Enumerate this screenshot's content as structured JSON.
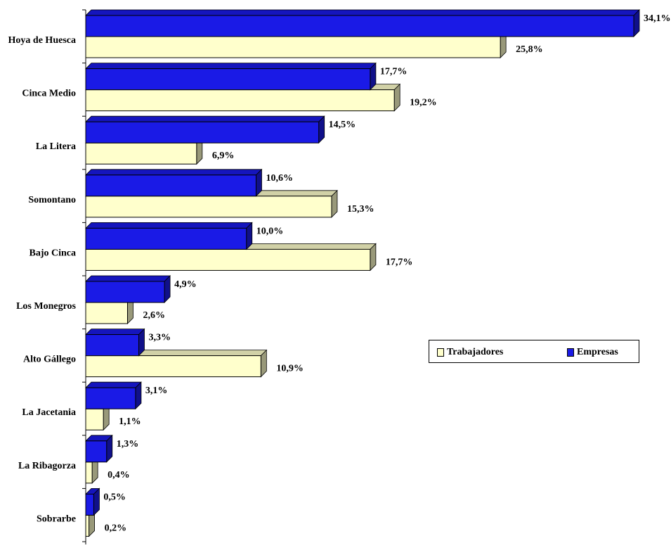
{
  "chart_data": {
    "type": "bar",
    "orientation": "horizontal",
    "style": "3d",
    "categories": [
      "Hoya de Huesca",
      "Cinca Medio",
      "La Litera",
      "Somontano",
      "Bajo Cinca",
      "Los Monegros",
      "Alto Gállego",
      "La Jacetania",
      "La Ribagorza",
      "Sobrarbe"
    ],
    "series": [
      {
        "name": "Empresas",
        "color": "#1a1ae6",
        "values": [
          34.1,
          17.7,
          14.5,
          10.6,
          10.0,
          4.9,
          3.3,
          3.1,
          1.3,
          0.5
        ],
        "labels": [
          "34,1%",
          "17,7%",
          "14,5%",
          "10,6%",
          "10,0%",
          "4,9%",
          "3,3%",
          "3,1%",
          "1,3%",
          "0,5%"
        ]
      },
      {
        "name": "Trabajadores",
        "color": "#ffffcc",
        "values": [
          25.8,
          19.2,
          6.9,
          15.3,
          17.7,
          2.6,
          10.9,
          1.1,
          0.4,
          0.2
        ],
        "labels": [
          "25,8%",
          "19,2%",
          "6,9%",
          "15,3%",
          "17,7%",
          "2,6%",
          "10,9%",
          "1,1%",
          "0,4%",
          "0,2%"
        ]
      }
    ],
    "xlim": [
      0,
      34.1
    ],
    "grid": false,
    "legend_position": "right-middle"
  },
  "legend": {
    "items": [
      {
        "label": "Trabajadores",
        "color": "#ffffcc"
      },
      {
        "label": "Empresas",
        "color": "#1a1ae6"
      }
    ]
  }
}
